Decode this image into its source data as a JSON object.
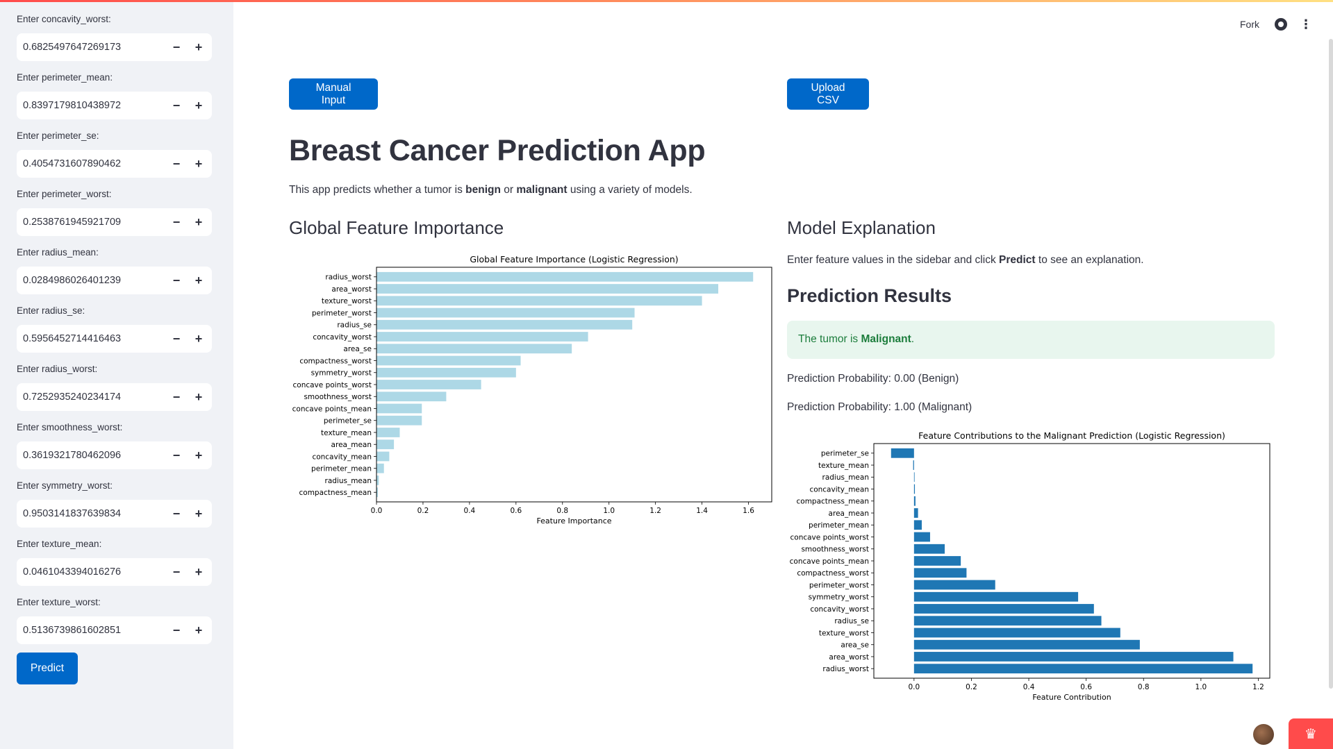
{
  "sidebar": {
    "fields": [
      {
        "label": "Enter concavity_worst:",
        "value": "0.6825497647269173"
      },
      {
        "label": "Enter perimeter_mean:",
        "value": "0.8397179810438972"
      },
      {
        "label": "Enter perimeter_se:",
        "value": "0.4054731607890462"
      },
      {
        "label": "Enter perimeter_worst:",
        "value": "0.2538761945921709"
      },
      {
        "label": "Enter radius_mean:",
        "value": "0.0284986026401239"
      },
      {
        "label": "Enter radius_se:",
        "value": "0.5956452714416463"
      },
      {
        "label": "Enter radius_worst:",
        "value": "0.7252935240234174"
      },
      {
        "label": "Enter smoothness_worst:",
        "value": "0.3619321780462096"
      },
      {
        "label": "Enter symmetry_worst:",
        "value": "0.9503141837639834"
      },
      {
        "label": "Enter texture_mean:",
        "value": "0.0461043394016276"
      },
      {
        "label": "Enter texture_worst:",
        "value": "0.5136739861602851"
      }
    ],
    "minus_label": "−",
    "plus_label": "+",
    "predict_label": "Predict"
  },
  "toolbar": {
    "fork_label": "Fork",
    "github_icon": "github-icon",
    "menu_icon": "kebab-menu-icon"
  },
  "buttons": {
    "manual_input": "Manual Input",
    "upload_csv": "Upload CSV"
  },
  "main": {
    "title": "Breast Cancer Prediction App",
    "desc_pre": "This app predicts whether a tumor is ",
    "desc_benign": "benign",
    "desc_mid": " or ",
    "desc_malignant": "malignant",
    "desc_post": " using a variety of models.",
    "gfi_heading": "Global Feature Importance",
    "me_heading": "Model Explanation",
    "explain_pre": "Enter feature values in the sidebar and click ",
    "explain_bold": "Predict",
    "explain_post": " to see an explanation.",
    "pr_heading": "Prediction Results",
    "result_pre": "The tumor is ",
    "result_bold": "Malignant",
    "result_post": ".",
    "prob_benign": "Prediction Probability: 0.00 (Benign)",
    "prob_malignant": "Prediction Probability: 1.00 (Malignant)"
  },
  "colors": {
    "primary": "#0068c9",
    "sidebar_bg": "#f0f2f6",
    "chart1_bar": "#add8e6",
    "chart2_bar": "#1f77b4",
    "success_bg": "#e8f6ee",
    "success_text": "#1c7d3c"
  },
  "chart_data": [
    {
      "type": "bar",
      "orientation": "horizontal",
      "title": "Global Feature Importance (Logistic Regression)",
      "xlabel": "Feature Importance",
      "ylabel": "",
      "xlim": [
        0,
        1.7
      ],
      "xticks": [
        0.0,
        0.2,
        0.4,
        0.6,
        0.8,
        1.0,
        1.2,
        1.4,
        1.6
      ],
      "categories": [
        "radius_worst",
        "area_worst",
        "texture_worst",
        "perimeter_worst",
        "radius_se",
        "concavity_worst",
        "area_se",
        "compactness_worst",
        "symmetry_worst",
        "concave points_worst",
        "smoothness_worst",
        "concave points_mean",
        "perimeter_se",
        "texture_mean",
        "area_mean",
        "concavity_mean",
        "perimeter_mean",
        "radius_mean",
        "compactness_mean"
      ],
      "values": [
        1.62,
        1.47,
        1.4,
        1.11,
        1.1,
        0.91,
        0.84,
        0.62,
        0.6,
        0.45,
        0.3,
        0.195,
        0.195,
        0.1,
        0.075,
        0.055,
        0.032,
        0.01,
        0.006
      ]
    },
    {
      "type": "bar",
      "orientation": "horizontal",
      "title": "Feature Contributions to the Malignant Prediction (Logistic Regression)",
      "xlabel": "Feature Contribution",
      "ylabel": "",
      "xlim": [
        -0.14,
        1.24
      ],
      "xticks": [
        0.0,
        0.2,
        0.4,
        0.6,
        0.8,
        1.0,
        1.2
      ],
      "categories": [
        "perimeter_se",
        "texture_mean",
        "radius_mean",
        "concavity_mean",
        "compactness_mean",
        "area_mean",
        "perimeter_mean",
        "concave points_worst",
        "smoothness_worst",
        "concave points_mean",
        "compactness_worst",
        "perimeter_worst",
        "symmetry_worst",
        "concavity_worst",
        "radius_se",
        "texture_worst",
        "area_se",
        "area_worst",
        "radius_worst"
      ],
      "values": [
        -0.08,
        -0.003,
        0.0,
        0.003,
        0.005,
        0.014,
        0.027,
        0.056,
        0.107,
        0.163,
        0.183,
        0.283,
        0.572,
        0.627,
        0.653,
        0.719,
        0.787,
        1.113,
        1.18
      ]
    }
  ]
}
